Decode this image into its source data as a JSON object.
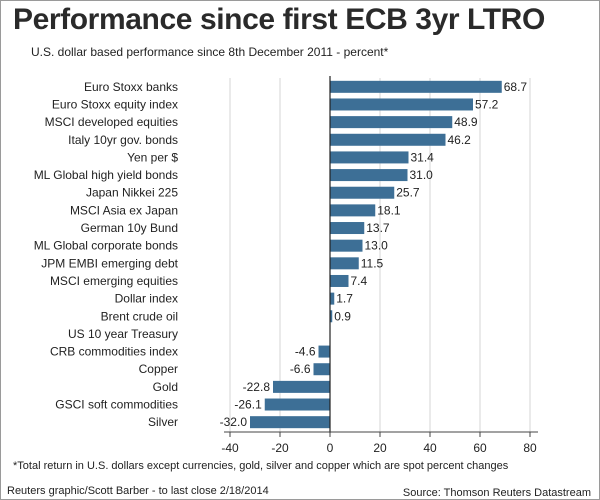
{
  "title": "Performance since first ECB 3yr LTRO",
  "subtitle": "U.S. dollar based performance since 8th December 2011 - percent*",
  "footnote": "*Total return in U.S. dollars except currencies, gold, silver and copper which are spot percent changes",
  "credit": "Reuters graphic/Scott Barber - to last close 2/18/2014",
  "source": "Source: Thomson Reuters Datastream",
  "chart_data": {
    "type": "bar",
    "orientation": "horizontal",
    "categories": [
      "Euro Stoxx banks",
      "Euro Stoxx equity index",
      "MSCI developed equities",
      "Italy 10yr gov. bonds",
      "Yen per $",
      "ML Global high yield bonds",
      "Japan Nikkei 225",
      "MSCI Asia ex Japan",
      "German 10y Bund",
      "ML Global corporate bonds",
      "JPM EMBI emerging debt",
      "MSCI emerging equities",
      "Dollar index",
      "Brent crude oil",
      "US 10 year Treasury",
      "CRB commodities index",
      "Copper",
      "Gold",
      "GSCI soft commodities",
      "Silver"
    ],
    "values": [
      68.7,
      57.2,
      48.9,
      46.2,
      31.4,
      31.0,
      25.7,
      18.1,
      13.7,
      13.0,
      11.5,
      7.4,
      1.7,
      0.9,
      null,
      -4.6,
      -6.6,
      -22.8,
      -26.1,
      -32.0
    ],
    "value_labels": [
      "68.7",
      "57.2",
      "48.9",
      "46.2",
      "31.4",
      "31.0",
      "25.7",
      "18.1",
      "13.7",
      "13.0",
      "11.5",
      "7.4",
      "1.7",
      "0.9",
      "",
      "-4.6",
      "-6.6",
      "-22.8",
      "-26.1",
      "-32.0"
    ],
    "xticks": [
      -40,
      -20,
      0,
      20,
      40,
      60,
      80
    ],
    "xlim": [
      -40,
      80
    ],
    "grid": true,
    "bar_color": "#3d6f96"
  }
}
